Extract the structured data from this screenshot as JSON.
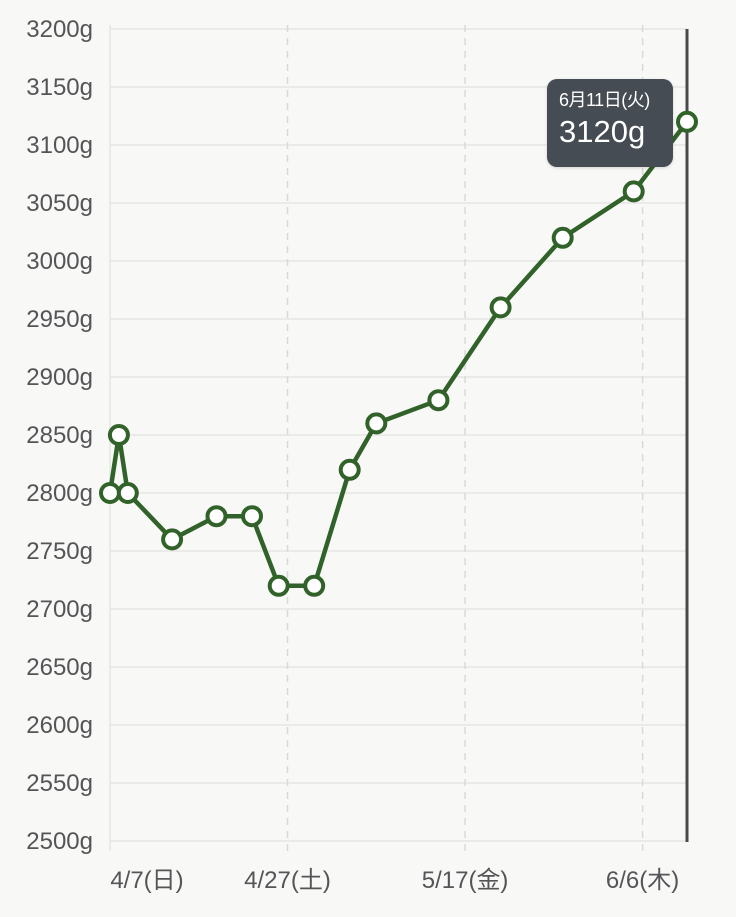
{
  "chart_data": {
    "type": "line",
    "title": "",
    "unit": "g",
    "ylim": [
      2500,
      3200
    ],
    "y_tick_step": 50,
    "y_tick_labels": [
      "3200g",
      "3150g",
      "3100g",
      "3050g",
      "3000g",
      "2950g",
      "2900g",
      "2850g",
      "2800g",
      "2750g",
      "2700g",
      "2650g",
      "2600g",
      "2550g",
      "2500g"
    ],
    "x_tick_labels": [
      "4/7(日)",
      "4/27(土)",
      "5/17(金)",
      "6/6(木)"
    ],
    "x_ticks_days": [
      0,
      20,
      40,
      60
    ],
    "x_range_days": [
      0,
      65
    ],
    "grid": true,
    "legend": "none",
    "points": [
      {
        "date": "4/7",
        "day": 0,
        "value": 2800
      },
      {
        "date": "4/8",
        "day": 1,
        "value": 2850
      },
      {
        "date": "4/9",
        "day": 2,
        "value": 2800
      },
      {
        "date": "4/14",
        "day": 7,
        "value": 2760
      },
      {
        "date": "4/19",
        "day": 12,
        "value": 2780
      },
      {
        "date": "4/23",
        "day": 16,
        "value": 2780
      },
      {
        "date": "4/26",
        "day": 19,
        "value": 2720
      },
      {
        "date": "4/30",
        "day": 23,
        "value": 2720
      },
      {
        "date": "5/4",
        "day": 27,
        "value": 2820
      },
      {
        "date": "5/7",
        "day": 30,
        "value": 2860
      },
      {
        "date": "5/14",
        "day": 37,
        "value": 2880
      },
      {
        "date": "5/21",
        "day": 44,
        "value": 2960
      },
      {
        "date": "5/28",
        "day": 51,
        "value": 3020
      },
      {
        "date": "6/5",
        "day": 59,
        "value": 3060
      },
      {
        "date": "6/11",
        "day": 65,
        "value": 3120
      }
    ],
    "selected_point": {
      "day": 65,
      "value": 3120
    },
    "tooltip": {
      "date_label": "6月11日(火)",
      "value_label": "3120g"
    },
    "colors": {
      "background": "#f8f8f6",
      "line": "#316229",
      "marker_fill": "#ffffff",
      "grid_line": "#e6e6e4",
      "grid_dash": "#d9d9d7",
      "axis_text": "#555558",
      "indicator": "#4a4a4a",
      "tooltip_bg": "#464c54",
      "tooltip_text": "#ffffff"
    }
  }
}
